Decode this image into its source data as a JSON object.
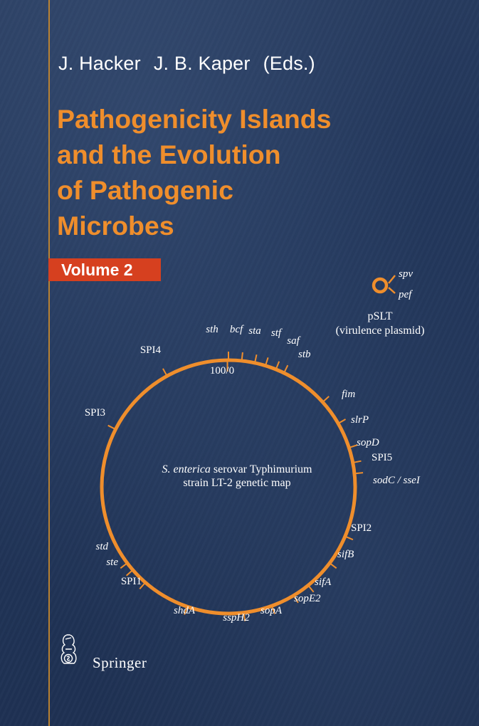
{
  "editors": [
    "J. Hacker",
    "J. B. Kaper",
    "(Eds.)"
  ],
  "title_lines": [
    "Pathogenicity Islands",
    "and the Evolution",
    "of Pathogenic",
    "Microbes"
  ],
  "volume_label": "Volume 2",
  "plasmid": {
    "genes": [
      "spv",
      "pef"
    ],
    "name": "pSLT",
    "description": "(virulence plasmid)"
  },
  "genetic_map": {
    "origin_label": "100/0",
    "center_species": "S. enterica",
    "center_line1_rest": " serovar Typhimurium",
    "center_line2": "strain LT-2 genetic map",
    "loci": [
      {
        "label": "sth",
        "italic": true
      },
      {
        "label": "bcf",
        "italic": true
      },
      {
        "label": "sta",
        "italic": true
      },
      {
        "label": "stf",
        "italic": true
      },
      {
        "label": "saf",
        "italic": true
      },
      {
        "label": "stb",
        "italic": true
      },
      {
        "label": "fim",
        "italic": true
      },
      {
        "label": "slrP",
        "italic": true
      },
      {
        "label": "sopD",
        "italic": true
      },
      {
        "label": "SPI5",
        "italic": false
      },
      {
        "label": "sodC / sseI",
        "italic": true
      },
      {
        "label": "SPI2",
        "italic": false
      },
      {
        "label": "sifB",
        "italic": true
      },
      {
        "label": "sifA",
        "italic": true
      },
      {
        "label": "sopE2",
        "italic": true
      },
      {
        "label": "sopA",
        "italic": true
      },
      {
        "label": "sspH2",
        "italic": true
      },
      {
        "label": "shdA",
        "italic": true
      },
      {
        "label": "SPI1",
        "italic": false
      },
      {
        "label": "ste",
        "italic": true
      },
      {
        "label": "std",
        "italic": true
      },
      {
        "label": "SPI3",
        "italic": false
      },
      {
        "label": "SPI4",
        "italic": false
      }
    ]
  },
  "publisher": "Springer",
  "colors": {
    "background": "#22365a",
    "accent_orange": "#ef8e2c",
    "volume_band": "#d6401f",
    "text": "#ffffff"
  },
  "icons": {
    "plasmid": "plasmid-ring-icon",
    "publisher": "springer-knight-logo-icon"
  }
}
